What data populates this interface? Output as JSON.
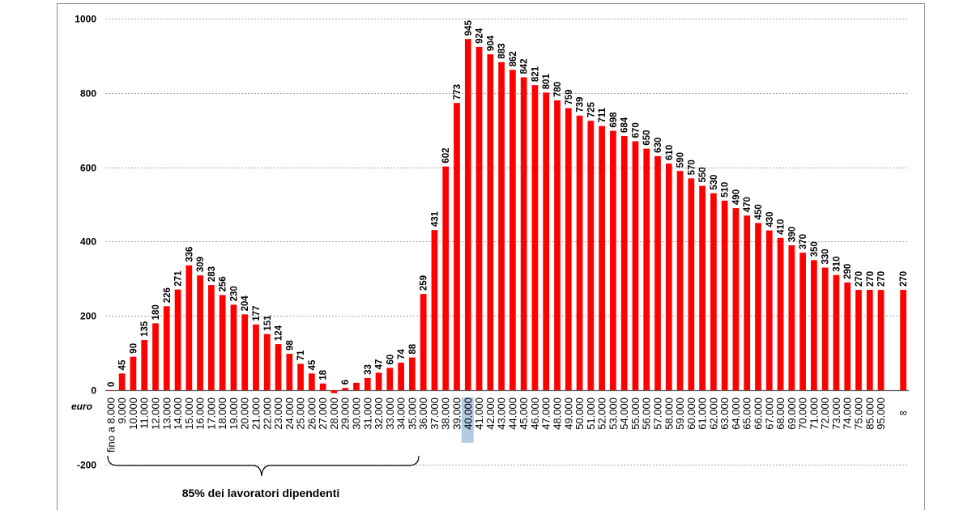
{
  "chart_data": {
    "type": "bar",
    "title": "",
    "xlabel": "euro",
    "ylabel": "",
    "ylim": [
      -200,
      1000
    ],
    "yticks": [
      -200,
      0,
      200,
      400,
      600,
      800,
      1000
    ],
    "ytick_labels": [
      "-200",
      "0",
      "200",
      "400",
      "600",
      "800",
      "1000"
    ],
    "grid": true,
    "bar_color": "#ff0000",
    "highlight_color": "#b4cbe3",
    "highlighted_category": "40.000",
    "categories": [
      "fino a 8.000",
      "9.000",
      "10.000",
      "11.000",
      "12.000",
      "13.000",
      "14.000",
      "15.000",
      "16.000",
      "17.000",
      "18.000",
      "19.000",
      "20.000",
      "21.000",
      "22.000",
      "23.000",
      "24.000",
      "25.000",
      "26.000",
      "27.000",
      "28.000",
      "29.000",
      "30.000",
      "31.000",
      "32.000",
      "33.000",
      "34.000",
      "35.000",
      "36.000",
      "37.000",
      "38.000",
      "39.000",
      "40.000",
      "41.000",
      "42.000",
      "43.000",
      "44.000",
      "45.000",
      "46.000",
      "47.000",
      "48.000",
      "49.000",
      "50.000",
      "51.000",
      "52.000",
      "53.000",
      "54.000",
      "55.000",
      "56.000",
      "57.000",
      "58.000",
      "59.000",
      "60.000",
      "61.000",
      "62.000",
      "63.000",
      "64.000",
      "65.000",
      "66.000",
      "67.000",
      "68.000",
      "69.000",
      "70.000",
      "71.000",
      "72.000",
      "73.000",
      "74.000",
      "75.000",
      "85.000",
      "95.000",
      "",
      "∞"
    ],
    "values": [
      0,
      45,
      90,
      135,
      180,
      226,
      271,
      336,
      309,
      283,
      256,
      230,
      204,
      177,
      151,
      124,
      98,
      71,
      45,
      18,
      -8,
      6,
      20,
      33,
      47,
      60,
      74,
      88,
      259,
      431,
      602,
      773,
      945,
      924,
      904,
      883,
      862,
      842,
      821,
      801,
      780,
      759,
      739,
      725,
      711,
      698,
      684,
      670,
      650,
      630,
      610,
      590,
      570,
      550,
      530,
      510,
      490,
      470,
      450,
      430,
      410,
      390,
      370,
      350,
      330,
      310,
      290,
      270,
      270,
      270,
      null,
      270
    ],
    "data_labels": [
      "0",
      "45",
      "90",
      "135",
      "180",
      "226",
      "271",
      "336",
      "309",
      "283",
      "256",
      "230",
      "204",
      "177",
      "151",
      "124",
      "98",
      "71",
      "45",
      "18",
      "",
      "6",
      "",
      "33",
      "47",
      "60",
      "74",
      "88",
      "259",
      "431",
      "602",
      "773",
      "945",
      "924",
      "904",
      "883",
      "862",
      "842",
      "821",
      "801",
      "780",
      "759",
      "739",
      "725",
      "711",
      "698",
      "684",
      "670",
      "650",
      "630",
      "610",
      "590",
      "570",
      "550",
      "530",
      "510",
      "490",
      "470",
      "450",
      "430",
      "410",
      "390",
      "370",
      "350",
      "330",
      "310",
      "290",
      "270",
      "270",
      "270",
      "",
      "270"
    ],
    "annotation": "85% dei lavoratori dipendenti"
  }
}
